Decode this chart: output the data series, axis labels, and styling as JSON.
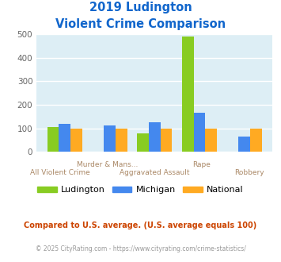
{
  "title_line1": "2019 Ludington",
  "title_line2": "Violent Crime Comparison",
  "categories": [
    "All Violent Crime",
    "Murder & Mans...",
    "Aggravated Assault",
    "Rape",
    "Robbery"
  ],
  "row1_labels": [
    "Murder & Mans...",
    "Rape"
  ],
  "row2_labels": [
    "All Violent Crime",
    "Aggravated Assault",
    "Robbery"
  ],
  "ludington": [
    105,
    0,
    78,
    490,
    0
  ],
  "michigan": [
    118,
    113,
    125,
    168,
    65
  ],
  "national": [
    100,
    100,
    100,
    100,
    100
  ],
  "bar_color_ludington": "#88cc22",
  "bar_color_michigan": "#4488ee",
  "bar_color_national": "#ffaa22",
  "bg_color": "#ddeef5",
  "title_color": "#1166cc",
  "xlabel_color": "#aa8866",
  "grid_color": "#ffffff",
  "ylim": [
    0,
    500
  ],
  "yticks": [
    0,
    100,
    200,
    300,
    400,
    500
  ],
  "legend_labels": [
    "Ludington",
    "Michigan",
    "National"
  ],
  "footnote1": "Compared to U.S. average. (U.S. average equals 100)",
  "footnote2": "© 2025 CityRating.com - https://www.cityrating.com/crime-statistics/",
  "footnote1_color": "#cc4400",
  "footnote2_color": "#999999"
}
